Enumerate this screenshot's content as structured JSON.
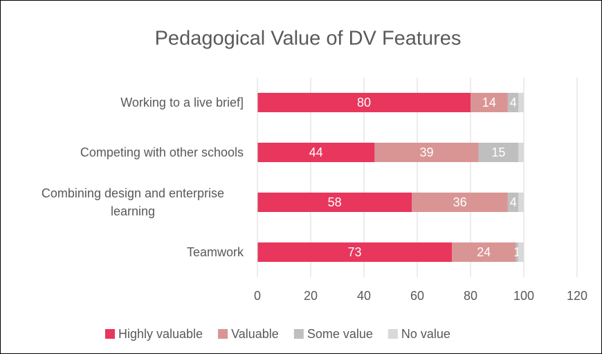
{
  "chart_data": {
    "type": "stacked_bar_horizontal",
    "title": "Pedagogical Value of DV Features",
    "categories": [
      "Working to a live brief]",
      "Competing with other schools",
      "Combining design and enterprise learning",
      "Teamwork"
    ],
    "series": [
      {
        "name": "Highly valuable",
        "color": "#e8365d",
        "values": [
          80,
          44,
          58,
          73
        ],
        "data_labels": true
      },
      {
        "name": "Valuable",
        "color": "#d99594",
        "values": [
          14,
          39,
          36,
          24
        ],
        "data_labels": true
      },
      {
        "name": "Some value",
        "color": "#bfbfbf",
        "values": [
          4,
          15,
          4,
          1
        ],
        "data_labels": true
      },
      {
        "name": "No value",
        "color": "#d9d9d9",
        "values": [
          2,
          2,
          2,
          2
        ],
        "data_labels": false
      }
    ],
    "xlim": [
      0,
      120
    ],
    "xticks": [
      0,
      20,
      40,
      60,
      80,
      100,
      120
    ],
    "grid": true,
    "legend": "bottom"
  }
}
